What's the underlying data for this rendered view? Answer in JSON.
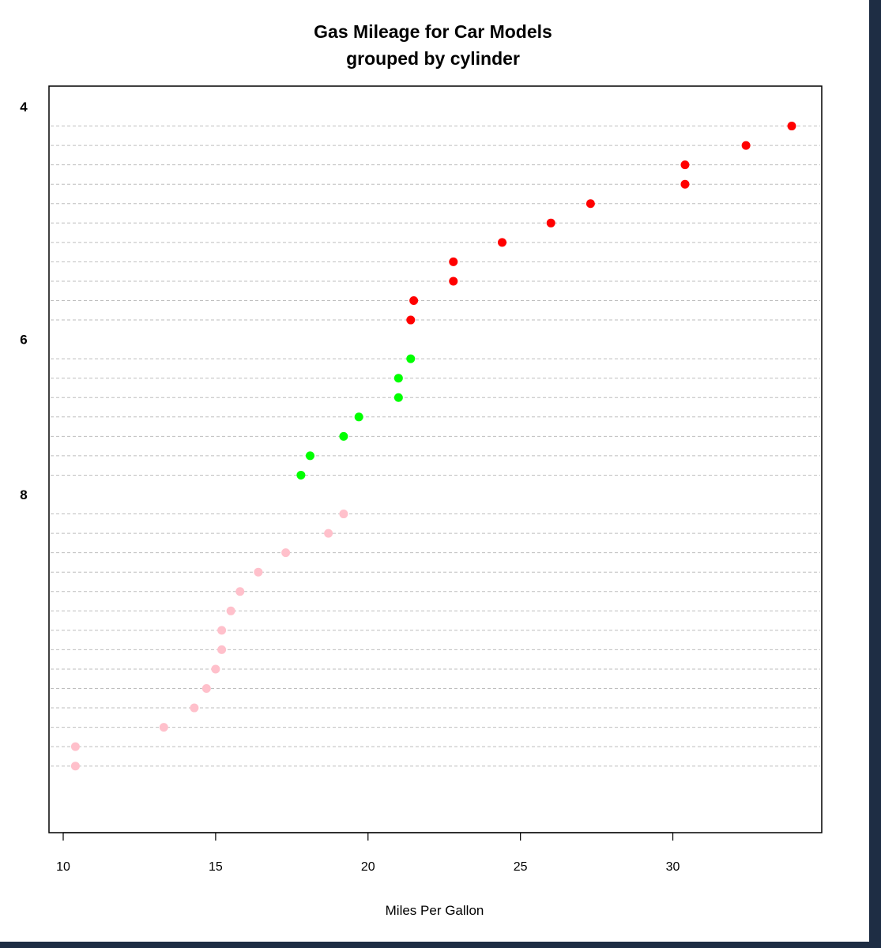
{
  "colors": {
    "background": "#ffffff",
    "window_frame": "#1e2d44",
    "gridline": "#bebebe"
  },
  "chart_data": {
    "type": "scatter",
    "subtype": "dotchart",
    "title": "Gas Mileage for Car Models",
    "subtitle": "grouped by cylinder",
    "xlabel": "Miles Per Gallon",
    "ylabel": "",
    "xlim": [
      9.5,
      34.9
    ],
    "x_ticks": [
      10,
      15,
      20,
      25,
      30
    ],
    "grid": "dashed horizontal lines per row",
    "legend": "none",
    "groups": [
      {
        "label": "4",
        "color": "#ff0000",
        "values": [
          33.9,
          32.4,
          30.4,
          30.4,
          27.3,
          26.0,
          24.4,
          22.8,
          22.8,
          21.5,
          21.4
        ]
      },
      {
        "label": "6",
        "color": "#00ff00",
        "values": [
          21.4,
          21.0,
          21.0,
          19.7,
          19.2,
          18.1,
          17.8
        ]
      },
      {
        "label": "8",
        "color": "#ffc0cb",
        "values": [
          19.2,
          18.7,
          17.3,
          16.4,
          15.8,
          15.5,
          15.2,
          15.2,
          15.0,
          14.7,
          14.3,
          13.3,
          10.4,
          10.4
        ]
      }
    ]
  }
}
